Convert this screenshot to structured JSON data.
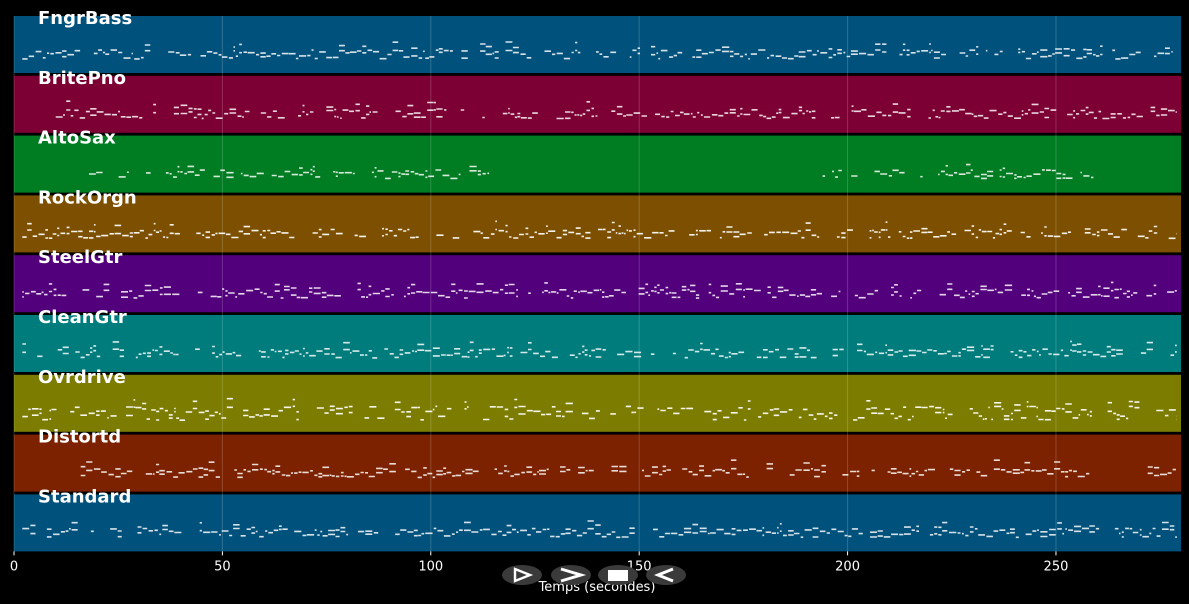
{
  "x_axis": {
    "label": "Temps (secondes)",
    "range": [
      0,
      280
    ],
    "ticks": [
      0,
      50,
      100,
      150,
      200,
      250
    ]
  },
  "tracks": [
    {
      "name": "FngrBass",
      "color": "#00527c",
      "note_color": "#e8eef2",
      "segments": [
        [
          2,
          278
        ]
      ],
      "style": "bass"
    },
    {
      "name": "BritePno",
      "color": "#7c0034",
      "note_color": "#f2e8ec",
      "segments": [
        [
          10,
          279
        ]
      ],
      "style": "piano"
    },
    {
      "name": "AltoSax",
      "color": "#007c22",
      "note_color": "#e8f2ea",
      "segments": [
        [
          18,
          114
        ],
        [
          194,
          260
        ]
      ],
      "style": "sax"
    },
    {
      "name": "RockOrgn",
      "color": "#7c5000",
      "note_color": "#ffffff",
      "segments": [
        [
          2,
          279
        ]
      ],
      "style": "organ"
    },
    {
      "name": "SteelGtr",
      "color": "#53007c",
      "note_color": "#f0e8f2",
      "segments": [
        [
          2,
          279
        ]
      ],
      "style": "guitar"
    },
    {
      "name": "CleanGtr",
      "color": "#007c7c",
      "note_color": "#e8f2f2",
      "segments": [
        [
          2,
          279
        ]
      ],
      "style": "clean"
    },
    {
      "name": "Ovrdrive",
      "color": "#7c7c00",
      "note_color": "#ffffff",
      "segments": [
        [
          2,
          279
        ]
      ],
      "style": "overdrive"
    },
    {
      "name": "Distortd",
      "color": "#7c2200",
      "note_color": "#f2ece8",
      "segments": [
        [
          16,
          258
        ],
        [
          272,
          279
        ]
      ],
      "style": "distort"
    },
    {
      "name": "Standard",
      "color": "#00527c",
      "note_color": "#e8eef2",
      "segments": [
        [
          2,
          279
        ]
      ],
      "style": "drums"
    }
  ],
  "controls": {
    "colors": {
      "button_bg": "#3a3a3a",
      "button_fg": "#ffffff"
    },
    "buttons": [
      {
        "name": "play-button",
        "icon": "play-outline-icon"
      },
      {
        "name": "fast-forward-button",
        "icon": "chevron-right-icon"
      },
      {
        "name": "stop-button",
        "icon": "stop-icon"
      },
      {
        "name": "rewind-button",
        "icon": "rewind-icon"
      }
    ]
  }
}
